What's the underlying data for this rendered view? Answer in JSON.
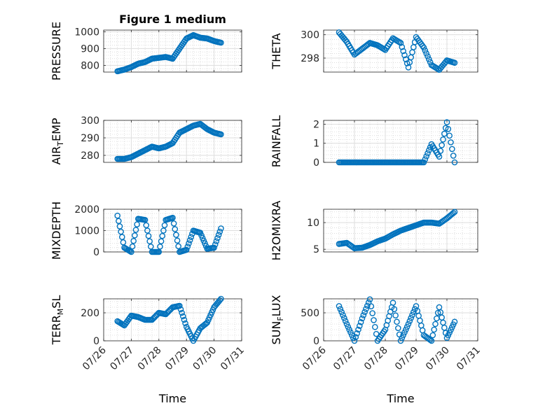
{
  "chart_data": [
    {
      "type": "scatter",
      "title": "Figure 1 medium",
      "ylabel": "PRESSURE",
      "xlabel": "",
      "ylim": [
        760,
        1010
      ],
      "yticks": [
        800,
        900,
        1000
      ],
      "xlim": [
        "07/26",
        "07/31"
      ],
      "xticks": [
        "07/26",
        "07/27",
        "07/28",
        "07/29",
        "07/30",
        "07/31"
      ],
      "show_xticklabels": false,
      "grid": true,
      "minor_grid": true,
      "marker": "circle",
      "color": "#0072BD",
      "x": [
        "07/26 12:00",
        "07/26 18:00",
        "07/27 00:00",
        "07/27 06:00",
        "07/27 12:00",
        "07/27 18:00",
        "07/28 00:00",
        "07/28 06:00",
        "07/28 12:00",
        "07/28 18:00",
        "07/29 00:00",
        "07/29 06:00",
        "07/29 12:00",
        "07/29 18:00",
        "07/30 00:00",
        "07/30 06:00"
      ],
      "y": [
        765,
        775,
        790,
        810,
        820,
        840,
        845,
        850,
        840,
        900,
        960,
        980,
        965,
        960,
        945,
        935
      ]
    },
    {
      "type": "scatter",
      "title": "",
      "ylabel": "THETA",
      "xlabel": "",
      "ylim": [
        296.8,
        300.4
      ],
      "yticks": [
        298,
        300
      ],
      "xlim": [
        "07/26",
        "07/31"
      ],
      "xticks": [
        "07/26",
        "07/27",
        "07/28",
        "07/29",
        "07/30",
        "07/31"
      ],
      "show_xticklabels": false,
      "grid": true,
      "minor_grid": true,
      "marker": "circle",
      "color": "#0072BD",
      "x": [
        "07/26 12:00",
        "07/26 18:00",
        "07/27 00:00",
        "07/27 06:00",
        "07/27 12:00",
        "07/27 18:00",
        "07/28 00:00",
        "07/28 06:00",
        "07/28 12:00",
        "07/28 18:00",
        "07/29 00:00",
        "07/29 06:00",
        "07/29 12:00",
        "07/29 18:00",
        "07/30 00:00",
        "07/30 06:00"
      ],
      "y": [
        300.2,
        299.4,
        298.3,
        298.8,
        299.3,
        299.1,
        298.7,
        299.7,
        299.3,
        297.2,
        299.8,
        298.9,
        297.4,
        297.0,
        297.8,
        297.6
      ]
    },
    {
      "type": "scatter",
      "title": "",
      "ylabel": "AIR_TEMP",
      "ylabel_main": "AIR",
      "ylabel_sub": "T",
      "ylabel_rest": "EMP",
      "xlabel": "",
      "ylim": [
        276,
        300
      ],
      "yticks": [
        280,
        290,
        300
      ],
      "xlim": [
        "07/26",
        "07/31"
      ],
      "xticks": [
        "07/26",
        "07/27",
        "07/28",
        "07/29",
        "07/30",
        "07/31"
      ],
      "show_xticklabels": false,
      "grid": true,
      "minor_grid": true,
      "marker": "circle",
      "color": "#0072BD",
      "x": [
        "07/26 12:00",
        "07/26 18:00",
        "07/27 00:00",
        "07/27 06:00",
        "07/27 12:00",
        "07/27 18:00",
        "07/28 00:00",
        "07/28 06:00",
        "07/28 12:00",
        "07/28 18:00",
        "07/29 00:00",
        "07/29 06:00",
        "07/29 12:00",
        "07/29 18:00",
        "07/30 00:00",
        "07/30 06:00"
      ],
      "y": [
        278,
        278,
        279,
        281,
        283,
        285,
        284,
        285,
        287,
        293,
        295,
        297,
        298,
        295,
        293,
        292
      ]
    },
    {
      "type": "scatter",
      "title": "",
      "ylabel": "RAINFALL",
      "xlabel": "",
      "ylim": [
        0,
        2.2
      ],
      "yticks": [
        0,
        1,
        2
      ],
      "xlim": [
        "07/26",
        "07/31"
      ],
      "xticks": [
        "07/26",
        "07/27",
        "07/28",
        "07/29",
        "07/30",
        "07/31"
      ],
      "show_xticklabels": false,
      "grid": true,
      "minor_grid": true,
      "marker": "circle",
      "color": "#0072BD",
      "x": [
        "07/26 12:00",
        "07/26 18:00",
        "07/27 00:00",
        "07/27 06:00",
        "07/27 12:00",
        "07/27 18:00",
        "07/28 00:00",
        "07/28 06:00",
        "07/28 12:00",
        "07/28 18:00",
        "07/29 00:00",
        "07/29 06:00",
        "07/29 12:00",
        "07/29 18:00",
        "07/30 00:00",
        "07/30 06:00"
      ],
      "y": [
        0,
        0,
        0,
        0,
        0,
        0,
        0,
        0,
        0,
        0,
        0,
        0,
        0.95,
        0.3,
        2.1,
        0
      ]
    },
    {
      "type": "scatter",
      "title": "",
      "ylabel": "MIXDEPTH",
      "xlabel": "",
      "ylim": [
        0,
        2000
      ],
      "yticks": [
        0,
        1000,
        2000
      ],
      "xlim": [
        "07/26",
        "07/31"
      ],
      "xticks": [
        "07/26",
        "07/27",
        "07/28",
        "07/29",
        "07/30",
        "07/31"
      ],
      "show_xticklabels": false,
      "grid": true,
      "minor_grid": true,
      "marker": "circle",
      "color": "#0072BD",
      "x": [
        "07/26 12:00",
        "07/26 18:00",
        "07/27 00:00",
        "07/27 06:00",
        "07/27 12:00",
        "07/27 18:00",
        "07/28 00:00",
        "07/28 06:00",
        "07/28 12:00",
        "07/28 18:00",
        "07/29 00:00",
        "07/29 06:00",
        "07/29 12:00",
        "07/29 18:00",
        "07/30 00:00",
        "07/30 06:00"
      ],
      "y": [
        1700,
        200,
        0,
        1550,
        1500,
        0,
        0,
        1500,
        1600,
        0,
        100,
        1000,
        900,
        150,
        200,
        1100
      ]
    },
    {
      "type": "scatter",
      "title": "",
      "ylabel": "H2OMIXRA",
      "xlabel": "",
      "ylim": [
        4.5,
        12.5
      ],
      "yticks": [
        5,
        10
      ],
      "xlim": [
        "07/26",
        "07/31"
      ],
      "xticks": [
        "07/26",
        "07/27",
        "07/28",
        "07/29",
        "07/30",
        "07/31"
      ],
      "show_xticklabels": false,
      "grid": true,
      "minor_grid": true,
      "marker": "circle",
      "color": "#0072BD",
      "x": [
        "07/26 12:00",
        "07/26 18:00",
        "07/27 00:00",
        "07/27 06:00",
        "07/27 12:00",
        "07/27 18:00",
        "07/28 00:00",
        "07/28 06:00",
        "07/28 12:00",
        "07/28 18:00",
        "07/29 00:00",
        "07/29 06:00",
        "07/29 12:00",
        "07/29 18:00",
        "07/30 00:00",
        "07/30 06:00"
      ],
      "y": [
        6,
        6.2,
        5.2,
        5.3,
        5.8,
        6.5,
        7,
        7.8,
        8.5,
        9.0,
        9.5,
        10,
        10,
        9.8,
        10.8,
        12
      ]
    },
    {
      "type": "scatter",
      "title": "",
      "ylabel": "TERR_MSL",
      "ylabel_main": "TERR",
      "ylabel_sub": "M",
      "ylabel_rest": "SL",
      "xlabel": "Time",
      "ylim": [
        0,
        300
      ],
      "yticks": [
        0,
        200
      ],
      "xlim": [
        "07/26",
        "07/31"
      ],
      "xticks": [
        "07/26",
        "07/27",
        "07/28",
        "07/29",
        "07/30",
        "07/31"
      ],
      "show_xticklabels": true,
      "grid": true,
      "minor_grid": true,
      "marker": "circle",
      "color": "#0072BD",
      "x": [
        "07/26 12:00",
        "07/26 18:00",
        "07/27 00:00",
        "07/27 06:00",
        "07/27 12:00",
        "07/27 18:00",
        "07/28 00:00",
        "07/28 06:00",
        "07/28 12:00",
        "07/28 18:00",
        "07/29 00:00",
        "07/29 06:00",
        "07/29 12:00",
        "07/29 18:00",
        "07/30 00:00",
        "07/30 06:00"
      ],
      "y": [
        140,
        110,
        180,
        170,
        150,
        150,
        200,
        190,
        240,
        250,
        100,
        0,
        90,
        130,
        240,
        300
      ]
    },
    {
      "type": "scatter",
      "title": "",
      "ylabel": "SUN_FLUX",
      "ylabel_main": "SUN",
      "ylabel_sub": "F",
      "ylabel_rest": "LUX",
      "xlabel": "Time",
      "ylim": [
        0,
        750
      ],
      "yticks": [
        0,
        500
      ],
      "xlim": [
        "07/26",
        "07/31"
      ],
      "xticks": [
        "07/26",
        "07/27",
        "07/28",
        "07/29",
        "07/30",
        "07/31"
      ],
      "show_xticklabels": true,
      "grid": true,
      "minor_grid": true,
      "marker": "circle",
      "color": "#0072BD",
      "x": [
        "07/26 12:00",
        "07/26 18:00",
        "07/27 00:00",
        "07/27 06:00",
        "07/27 12:00",
        "07/27 18:00",
        "07/28 00:00",
        "07/28 06:00",
        "07/28 12:00",
        "07/28 18:00",
        "07/29 00:00",
        "07/29 06:00",
        "07/29 12:00",
        "07/29 18:00",
        "07/30 00:00",
        "07/30 06:00"
      ],
      "y": [
        620,
        300,
        0,
        400,
        740,
        0,
        200,
        680,
        0,
        300,
        620,
        100,
        0,
        600,
        50,
        340
      ]
    }
  ]
}
